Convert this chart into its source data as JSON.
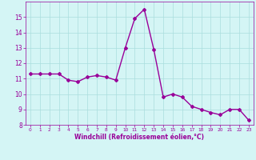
{
  "x": [
    0,
    1,
    2,
    3,
    4,
    5,
    6,
    7,
    8,
    9,
    10,
    11,
    12,
    13,
    14,
    15,
    16,
    17,
    18,
    19,
    20,
    21,
    22,
    23
  ],
  "y": [
    11.3,
    11.3,
    11.3,
    11.3,
    10.9,
    10.8,
    11.1,
    11.2,
    11.1,
    10.9,
    13.0,
    14.9,
    15.5,
    12.9,
    9.8,
    10.0,
    9.8,
    9.2,
    9.0,
    8.8,
    8.65,
    9.0,
    9.0,
    8.3
  ],
  "line_color": "#990099",
  "marker": "D",
  "marker_size": 2,
  "linewidth": 1.0,
  "xlabel": "Windchill (Refroidissement éolien,°C)",
  "xlim": [
    -0.5,
    23.5
  ],
  "ylim": [
    8,
    16
  ],
  "yticks": [
    8,
    9,
    10,
    11,
    12,
    13,
    14,
    15
  ],
  "xticks": [
    0,
    1,
    2,
    3,
    4,
    5,
    6,
    7,
    8,
    9,
    10,
    11,
    12,
    13,
    14,
    15,
    16,
    17,
    18,
    19,
    20,
    21,
    22,
    23
  ],
  "bg_color": "#d4f5f5",
  "grid_color": "#aadddd",
  "label_color": "#990099"
}
